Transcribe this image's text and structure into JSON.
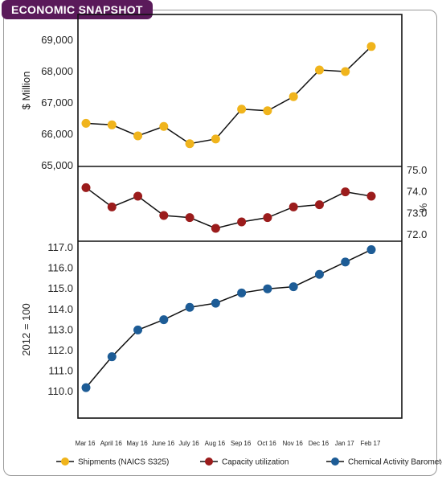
{
  "badge": "ECONOMIC SNAPSHOT",
  "chart_data": {
    "type": "line",
    "categories": [
      "Mar 16",
      "April 16",
      "May 16",
      "June 16",
      "July 16",
      "Aug 16",
      "Sep 16",
      "Oct 16",
      "Nov 16",
      "Dec 16",
      "Jan 17",
      "Feb 17"
    ],
    "panels": [
      {
        "series_key": "shipments",
        "ylabel": "$ Million",
        "ylabel_side": "left",
        "ylim": [
          65000,
          69000
        ],
        "ticks": [
          "69,000",
          "68,000",
          "67,000",
          "66,000",
          "65,000"
        ],
        "tick_values": [
          69000,
          68000,
          67000,
          66000,
          65000
        ]
      },
      {
        "series_key": "capacity",
        "ylabel": "%",
        "ylabel_side": "right",
        "ylim": [
          72.0,
          75.0
        ],
        "ticks": [
          "75.0",
          "74.0",
          "73.0",
          "72.0"
        ],
        "tick_values": [
          75.0,
          74.0,
          73.0,
          72.0
        ]
      },
      {
        "series_key": "cab",
        "ylabel": "2012 = 100",
        "ylabel_side": "left",
        "ylim": [
          109.5,
          117.0
        ],
        "ticks": [
          "117.0",
          "116.0",
          "115.0",
          "114.0",
          "113.0",
          "112.0",
          "111.0",
          "110.0"
        ],
        "tick_values": [
          117.0,
          116.0,
          115.0,
          114.0,
          113.0,
          112.0,
          111.0,
          110.0
        ]
      }
    ],
    "series": [
      {
        "key": "shipments",
        "name": "Shipments (NAICS S325)",
        "color": "#f0b41c",
        "values": [
          66350,
          66300,
          65950,
          66250,
          65700,
          65850,
          66800,
          66750,
          67200,
          68050,
          68000,
          68800
        ]
      },
      {
        "key": "capacity",
        "name": "Capacity utilization",
        "color": "#9b1c1c",
        "values": [
          74.2,
          73.3,
          73.8,
          72.9,
          72.8,
          72.3,
          72.6,
          72.8,
          73.3,
          73.4,
          74.0,
          73.8
        ]
      },
      {
        "key": "cab",
        "name": "Chemical Activity Barometer",
        "color": "#1d5c96",
        "values": [
          110.2,
          111.7,
          113.0,
          113.5,
          114.1,
          114.3,
          114.8,
          115.0,
          115.1,
          115.7,
          116.3,
          116.9
        ]
      }
    ],
    "legend_position": "bottom"
  }
}
